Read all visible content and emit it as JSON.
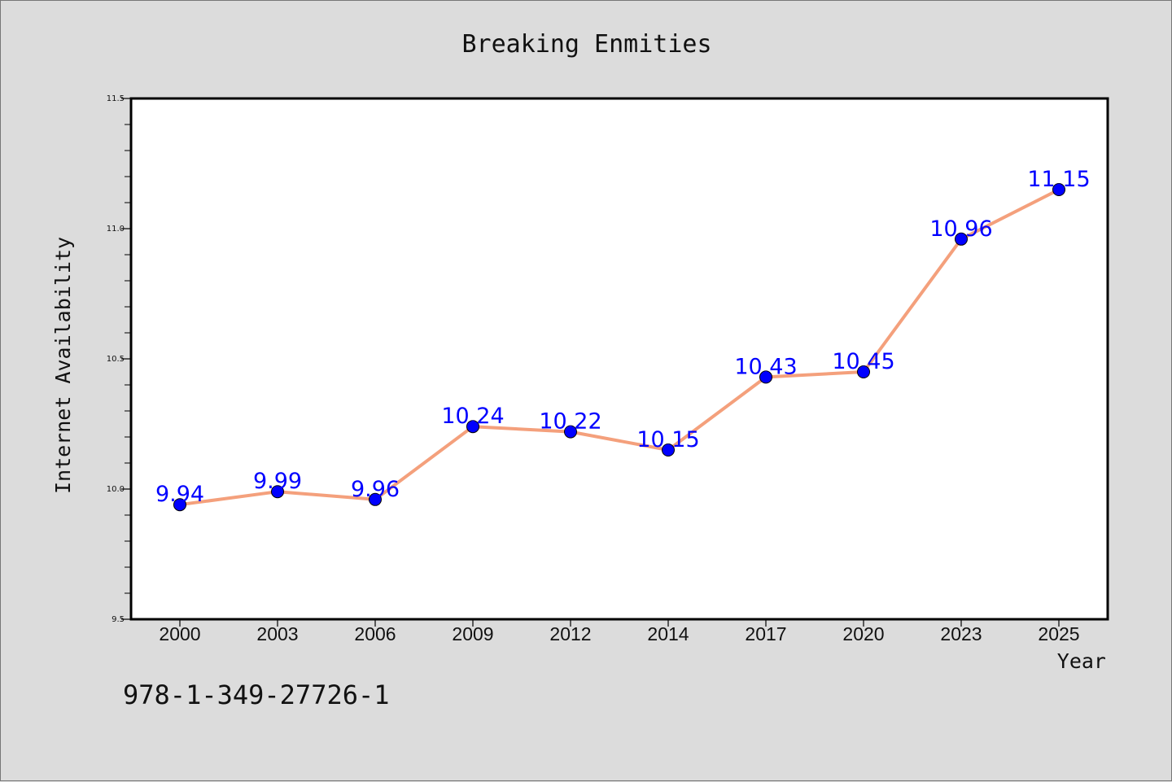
{
  "chart_data": {
    "type": "line",
    "title": "Breaking Enmities",
    "xlabel": "Year",
    "ylabel": "Internet Availability",
    "categories": [
      "2000",
      "2003",
      "2006",
      "2009",
      "2012",
      "2014",
      "2017",
      "2020",
      "2023",
      "2025"
    ],
    "series": [
      {
        "values": [
          9.94,
          9.99,
          9.96,
          10.24,
          10.22,
          10.15,
          10.43,
          10.45,
          10.96,
          11.15
        ]
      }
    ],
    "data_labels": [
      "9.94",
      "9.99",
      "9.96",
      "10.24",
      "10.22",
      "10.15",
      "10.43",
      "10.45",
      "10.96",
      "11.15"
    ],
    "ylim": [
      9.5,
      11.5
    ],
    "yticks": [
      "9.5",
      "10.0",
      "10.5",
      "11.0",
      "11.5"
    ],
    "grid": false,
    "legend": "none",
    "colors": {
      "line": "#f4a07c",
      "marker": "#0000ff",
      "label": "#0000ff",
      "background": "#dcdcdc",
      "plot_background": "#ffffff"
    }
  },
  "annotation": "978-1-349-27726-1"
}
